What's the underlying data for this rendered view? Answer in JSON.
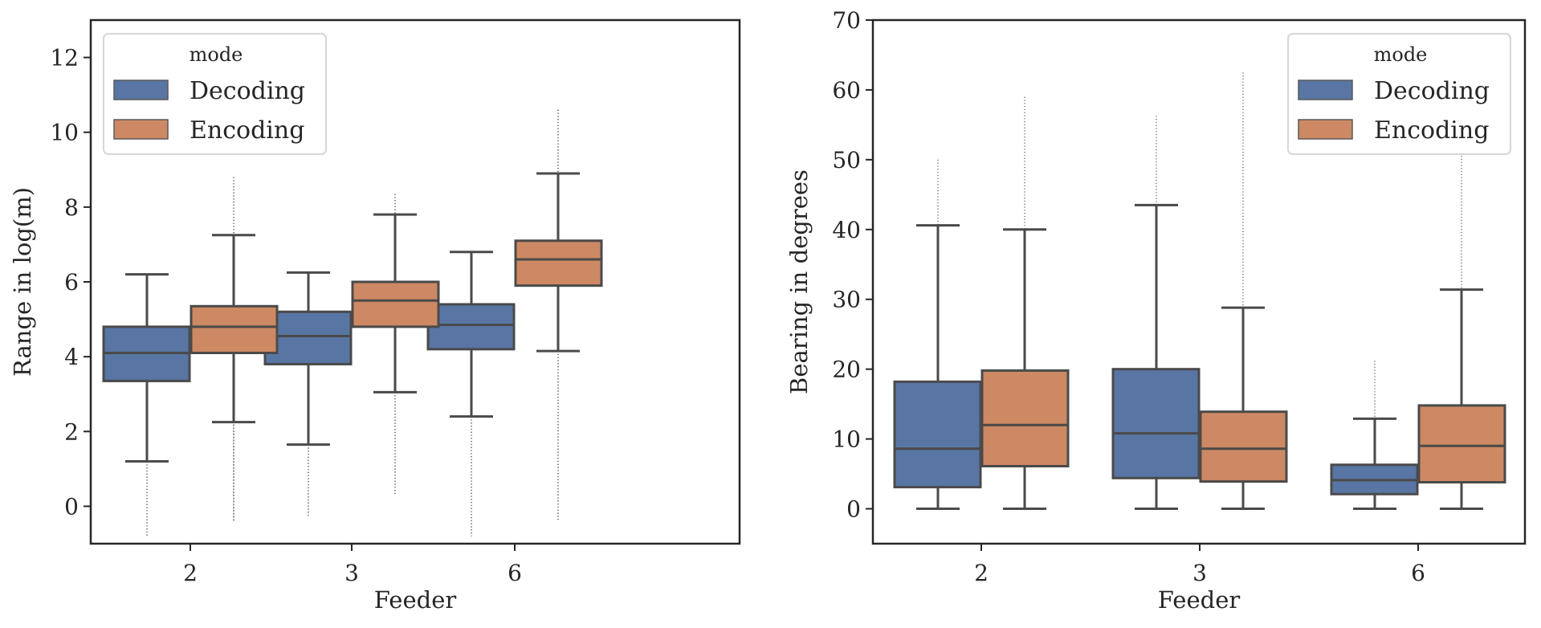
{
  "chart_data": [
    {
      "type": "box",
      "title": "",
      "xlabel": "Feeder",
      "ylabel": "Range in log(m)",
      "categories": [
        "2",
        "3",
        "6"
      ],
      "ylim": [
        -1,
        13
      ],
      "yticks": [
        0,
        2,
        4,
        6,
        8,
        10,
        12
      ],
      "grid": false,
      "legend": {
        "title": "mode",
        "position": "top-left",
        "entries": [
          "Decoding",
          "Encoding"
        ]
      },
      "series": [
        {
          "name": "Decoding",
          "color": "#5875a4",
          "boxes": [
            {
              "whisker_low": 1.2,
              "q1": 3.35,
              "median": 4.1,
              "q3": 4.8,
              "whisker_high": 6.2,
              "outlier_min": -0.8,
              "outlier_max": 1.2
            },
            {
              "whisker_low": 1.65,
              "q1": 3.8,
              "median": 4.55,
              "q3": 5.2,
              "whisker_high": 6.25,
              "outlier_min": -0.3,
              "outlier_max": 1.65
            },
            {
              "whisker_low": 2.4,
              "q1": 4.2,
              "median": 4.85,
              "q3": 5.4,
              "whisker_high": 6.8,
              "outlier_min": -0.8,
              "outlier_max": 2.4
            }
          ]
        },
        {
          "name": "Encoding",
          "color": "#cc8963",
          "boxes": [
            {
              "whisker_low": 2.25,
              "q1": 4.1,
              "median": 4.8,
              "q3": 5.35,
              "whisker_high": 7.25,
              "outlier_min": -0.4,
              "outlier_max": 8.8
            },
            {
              "whisker_low": 3.05,
              "q1": 4.8,
              "median": 5.5,
              "q3": 6.0,
              "whisker_high": 7.8,
              "outlier_min": 0.3,
              "outlier_max": 8.35
            },
            {
              "whisker_low": 4.15,
              "q1": 5.9,
              "median": 6.6,
              "q3": 7.1,
              "whisker_high": 8.9,
              "outlier_min": -0.4,
              "outlier_max": 10.6
            }
          ]
        }
      ]
    },
    {
      "type": "box",
      "title": "",
      "xlabel": "Feeder",
      "ylabel": "Bearing in degrees",
      "categories": [
        "2",
        "3",
        "6"
      ],
      "ylim": [
        -5,
        70
      ],
      "yticks": [
        0,
        10,
        20,
        30,
        40,
        50,
        60,
        70
      ],
      "grid": false,
      "legend": {
        "title": "mode",
        "position": "top-right",
        "entries": [
          "Decoding",
          "Encoding"
        ]
      },
      "series": [
        {
          "name": "Decoding",
          "color": "#5875a4",
          "boxes": [
            {
              "whisker_low": 0,
              "q1": 3.1,
              "median": 8.6,
              "q3": 18.2,
              "whisker_high": 40.6,
              "outlier_min": 40.6,
              "outlier_max": 50
            },
            {
              "whisker_low": 0,
              "q1": 4.4,
              "median": 10.8,
              "q3": 20.0,
              "whisker_high": 43.5,
              "outlier_min": 43.5,
              "outlier_max": 56.3
            },
            {
              "whisker_low": 0,
              "q1": 2.1,
              "median": 4.1,
              "q3": 6.3,
              "whisker_high": 12.9,
              "outlier_min": 12.9,
              "outlier_max": 21.2
            }
          ]
        },
        {
          "name": "Encoding",
          "color": "#cc8963",
          "boxes": [
            {
              "whisker_low": 0,
              "q1": 6.1,
              "median": 12.0,
              "q3": 19.8,
              "whisker_high": 40.0,
              "outlier_min": 40.0,
              "outlier_max": 59
            },
            {
              "whisker_low": 0,
              "q1": 3.9,
              "median": 8.6,
              "q3": 13.9,
              "whisker_high": 28.8,
              "outlier_min": 28.8,
              "outlier_max": 62.5
            },
            {
              "whisker_low": 0,
              "q1": 3.8,
              "median": 9.0,
              "q3": 14.8,
              "whisker_high": 31.4,
              "outlier_min": 31.4,
              "outlier_max": 51
            }
          ]
        }
      ]
    }
  ]
}
